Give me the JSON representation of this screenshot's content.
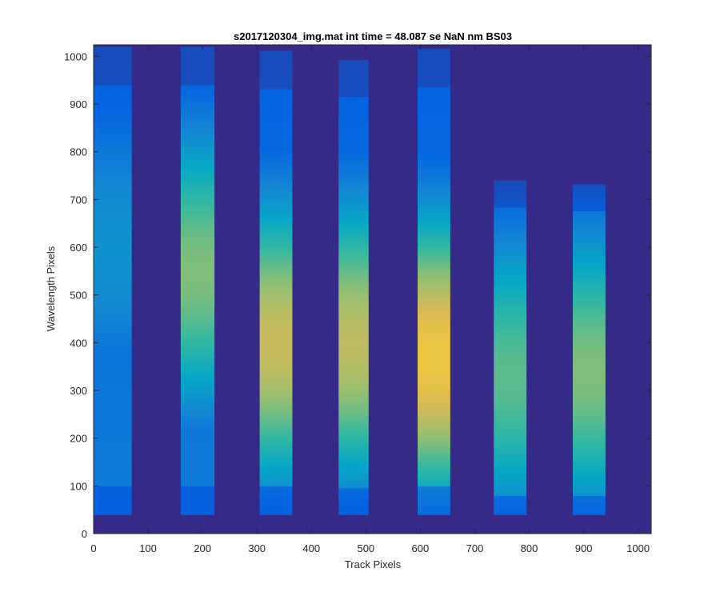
{
  "chart_data": {
    "type": "heatmap",
    "title": "s2017120304_img.mat int time = 48.087 se  NaN nm BS03",
    "xlabel": "Track Pixels",
    "ylabel": "Wavelength Pixels",
    "xlim": [
      0,
      1024
    ],
    "ylim": [
      0,
      1024
    ],
    "x_ticks": [
      0,
      100,
      200,
      300,
      400,
      500,
      600,
      700,
      800,
      900,
      1000
    ],
    "y_ticks": [
      0,
      100,
      200,
      300,
      400,
      500,
      600,
      700,
      800,
      900,
      1000
    ],
    "background_level": 0.0,
    "colormap": [
      "#352a87",
      "#0363e1",
      "#1485d4",
      "#06a7c6",
      "#38b99e",
      "#92bf73",
      "#d9ba56",
      "#fcce2e",
      "#f9fb0e"
    ],
    "tracks": [
      {
        "x_start": 0,
        "x_end": 70,
        "y_start": 40,
        "y_end": 1020,
        "peak_level": 0.3,
        "peak_row": 600
      },
      {
        "x_start": 160,
        "x_end": 222,
        "y_start": 40,
        "y_end": 1020,
        "peak_level": 0.6,
        "peak_row": 550
      },
      {
        "x_start": 305,
        "x_end": 365,
        "y_start": 40,
        "y_end": 1010,
        "peak_level": 0.72,
        "peak_row": 400
      },
      {
        "x_start": 450,
        "x_end": 505,
        "y_start": 40,
        "y_end": 990,
        "peak_level": 0.7,
        "peak_row": 400
      },
      {
        "x_start": 595,
        "x_end": 655,
        "y_start": 40,
        "y_end": 1015,
        "peak_level": 0.82,
        "peak_row": 370
      },
      {
        "x_start": 735,
        "x_end": 795,
        "y_start": 40,
        "y_end": 740,
        "peak_level": 0.55,
        "peak_row": 330
      },
      {
        "x_start": 880,
        "x_end": 940,
        "y_start": 40,
        "y_end": 730,
        "peak_level": 0.6,
        "peak_row": 340
      }
    ]
  }
}
